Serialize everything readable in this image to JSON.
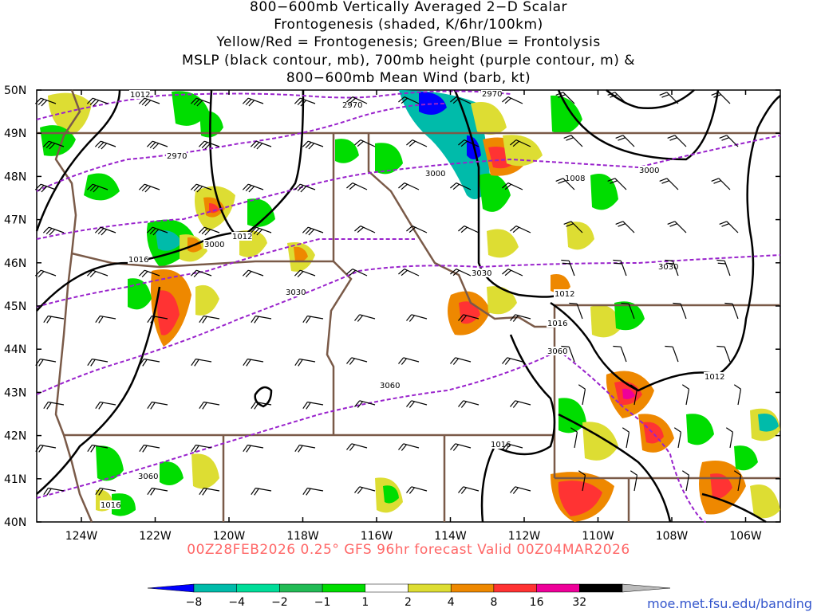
{
  "title_lines": [
    "800−600mb Vertically Averaged 2−D Scalar",
    "Frontogenesis (shaded, K/6hr/100km)",
    "Yellow/Red = Frontogenesis;  Green/Blue = Frontolysis",
    "MSLP (black contour, mb), 700mb height (purple contour, m) &",
    "800−600mb Mean Wind (barb, kt)"
  ],
  "lat_labels": [
    "50N",
    "49N",
    "48N",
    "47N",
    "46N",
    "45N",
    "44N",
    "43N",
    "42N",
    "41N",
    "40N"
  ],
  "lon_labels": [
    "124W",
    "122W",
    "120W",
    "118W",
    "116W",
    "114W",
    "112W",
    "110W",
    "108W",
    "106W"
  ],
  "forecast_line": "00Z28FEB2026 0.25° GFS 96hr forecast Valid 00Z04MAR2026",
  "credit": "moe.met.fsu.edu/banding",
  "colorbar": {
    "labels": [
      "−8",
      "−4",
      "−2",
      "−1",
      "1",
      "2",
      "4",
      "8",
      "16",
      "32"
    ],
    "colors": [
      "#0000ff",
      "#00bbaa",
      "#00dd99",
      "#22bb55",
      "#00dd00",
      "#ffffff",
      "#dddd33",
      "#ee8800",
      "#ff3333",
      "#ee0099",
      "#000000",
      "#bbbbbb"
    ]
  },
  "mslp_labels": [
    "1012",
    "1012",
    "1016",
    "1008",
    "1012",
    "1016",
    "1012",
    "1016",
    "1016"
  ],
  "height_labels": [
    "2970",
    "2970",
    "2970",
    "3000",
    "3000",
    "3000",
    "3030",
    "3030",
    "3030",
    "3060",
    "3060",
    "3060"
  ],
  "legend_colors": {
    "mslp": "#000000",
    "height": "#9922cc",
    "state_border": "#7a5a48"
  }
}
